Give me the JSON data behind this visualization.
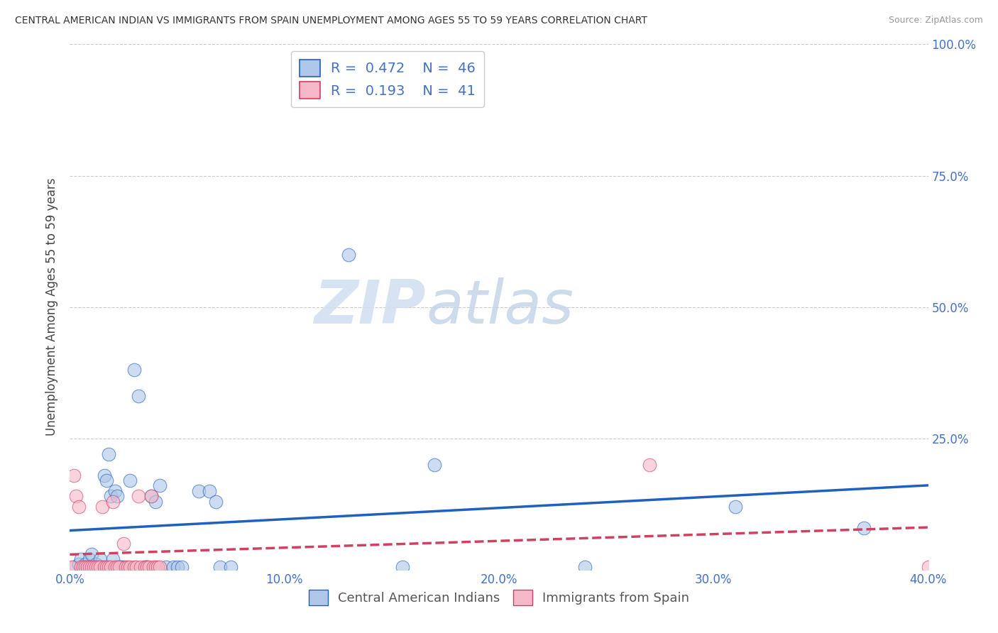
{
  "title": "CENTRAL AMERICAN INDIAN VS IMMIGRANTS FROM SPAIN UNEMPLOYMENT AMONG AGES 55 TO 59 YEARS CORRELATION CHART",
  "source": "Source: ZipAtlas.com",
  "ylabel": "Unemployment Among Ages 55 to 59 years",
  "r_blue": 0.472,
  "n_blue": 46,
  "r_pink": 0.193,
  "n_pink": 41,
  "blue_color": "#aec6e8",
  "blue_line_color": "#2060c0",
  "pink_color": "#f5b8c8",
  "pink_line_color": "#d04060",
  "blue_scatter_x": [
    0.2,
    0.4,
    0.5,
    0.6,
    0.7,
    0.8,
    0.9,
    1.0,
    1.1,
    1.2,
    1.3,
    1.4,
    1.5,
    1.6,
    1.7,
    1.8,
    1.9,
    2.0,
    2.1,
    2.2,
    2.3,
    2.4,
    2.5,
    2.8,
    3.0,
    3.2,
    3.5,
    3.6,
    3.8,
    4.0,
    4.2,
    4.5,
    4.8,
    5.0,
    5.2,
    6.0,
    6.5,
    6.8,
    7.0,
    7.5,
    13.0,
    15.5,
    17.0,
    24.0,
    31.0,
    37.0
  ],
  "blue_scatter_y": [
    0.5,
    1.0,
    2.0,
    0.2,
    1.0,
    0.5,
    2.0,
    3.0,
    0.5,
    1.0,
    0.5,
    2.0,
    0.5,
    18.0,
    17.0,
    22.0,
    14.0,
    2.0,
    15.0,
    14.0,
    0.5,
    0.5,
    0.5,
    17.0,
    38.0,
    33.0,
    0.5,
    0.5,
    14.0,
    13.0,
    16.0,
    0.5,
    0.5,
    0.5,
    0.5,
    15.0,
    15.0,
    13.0,
    0.5,
    0.5,
    60.0,
    0.5,
    20.0,
    0.5,
    12.0,
    8.0
  ],
  "pink_scatter_x": [
    0.1,
    0.2,
    0.3,
    0.4,
    0.5,
    0.6,
    0.7,
    0.8,
    0.9,
    1.0,
    1.1,
    1.2,
    1.3,
    1.4,
    1.5,
    1.6,
    1.7,
    1.8,
    1.9,
    2.0,
    2.1,
    2.2,
    2.3,
    2.5,
    2.6,
    2.7,
    2.8,
    3.0,
    3.1,
    3.2,
    3.3,
    3.5,
    3.6,
    3.7,
    3.8,
    3.9,
    4.0,
    4.1,
    4.2,
    27.0,
    40.0
  ],
  "pink_scatter_y": [
    0.5,
    18.0,
    14.0,
    12.0,
    0.5,
    0.5,
    0.5,
    0.5,
    0.5,
    0.5,
    0.5,
    0.5,
    0.5,
    0.5,
    12.0,
    0.5,
    0.5,
    0.5,
    0.5,
    13.0,
    0.5,
    0.5,
    0.5,
    5.0,
    0.5,
    0.5,
    0.5,
    0.5,
    0.5,
    14.0,
    0.5,
    0.5,
    0.5,
    0.5,
    14.0,
    0.5,
    0.5,
    0.5,
    0.5,
    20.0,
    0.5
  ],
  "xlim": [
    0.0,
    40.0
  ],
  "ylim": [
    0.0,
    100.0
  ],
  "xticks": [
    0.0,
    10.0,
    20.0,
    30.0,
    40.0
  ],
  "xticklabels": [
    "0.0%",
    "10.0%",
    "20.0%",
    "30.0%",
    "40.0%"
  ],
  "yticks": [
    0.0,
    25.0,
    50.0,
    75.0,
    100.0
  ],
  "right_yticklabels": [
    "",
    "25.0%",
    "50.0%",
    "75.0%",
    "100.0%"
  ],
  "watermark_zip": "ZIP",
  "watermark_atlas": "atlas",
  "legend_labels": [
    "Central American Indians",
    "Immigrants from Spain"
  ],
  "background_color": "#ffffff",
  "grid_color": "#cccccc",
  "title_color": "#333333",
  "source_color": "#999999",
  "tick_color": "#4472c4",
  "axis_label_color": "#444444"
}
